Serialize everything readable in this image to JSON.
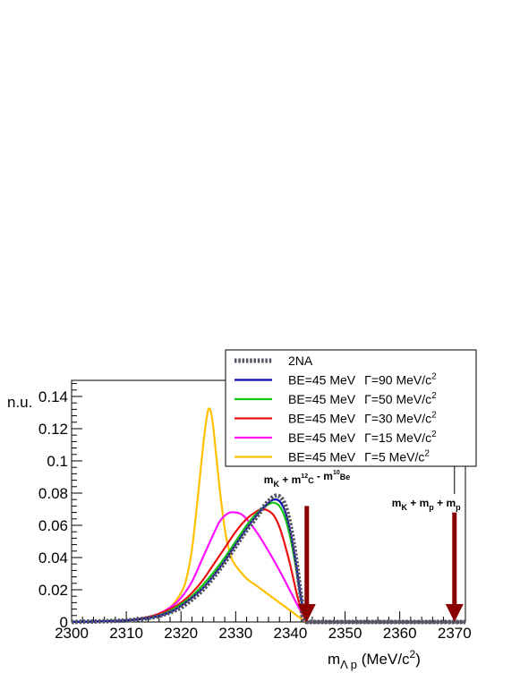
{
  "chart_data": {
    "type": "line",
    "title": "",
    "xlabel": "m_{Λ p} (MeV/c^{2})",
    "ylabel": "n.u.",
    "xlim": [
      2300,
      2372
    ],
    "ylim": [
      0,
      0.15
    ],
    "x_ticks": [
      2300,
      2310,
      2320,
      2330,
      2340,
      2350,
      2360,
      2370
    ],
    "y_ticks": [
      0,
      0.02,
      0.04,
      0.06,
      0.08,
      0.1,
      0.12,
      0.14
    ],
    "y_tick_labels": [
      "0",
      "0.02",
      "0.04",
      "0.06",
      "0.08",
      "0.1",
      "0.12",
      "0.14"
    ],
    "series": [
      {
        "name": "2NA",
        "color": "#555566",
        "style": "dotted",
        "x": [
          2300,
          2310,
          2315,
          2318,
          2320,
          2322,
          2324,
          2326,
          2328,
          2330,
          2332,
          2334,
          2335,
          2336,
          2337,
          2338,
          2339,
          2340,
          2341,
          2342,
          2343,
          2350,
          2360,
          2372
        ],
        "y": [
          0,
          0.001,
          0.003,
          0.006,
          0.009,
          0.014,
          0.02,
          0.028,
          0.037,
          0.047,
          0.057,
          0.066,
          0.071,
          0.075,
          0.078,
          0.078,
          0.073,
          0.06,
          0.04,
          0.015,
          0,
          0,
          0,
          0
        ]
      },
      {
        "name": "BE=45 MeV  Γ=90 MeV/c²",
        "color": "#0a0ab4",
        "style": "solid",
        "x": [
          2300,
          2310,
          2315,
          2318,
          2320,
          2322,
          2324,
          2326,
          2328,
          2330,
          2332,
          2334,
          2336,
          2337,
          2338,
          2339,
          2340,
          2341,
          2342,
          2343
        ],
        "y": [
          0,
          0.001,
          0.003,
          0.006,
          0.01,
          0.015,
          0.021,
          0.029,
          0.038,
          0.048,
          0.058,
          0.067,
          0.074,
          0.076,
          0.075,
          0.069,
          0.056,
          0.037,
          0.014,
          0
        ]
      },
      {
        "name": "BE=45 MeV  Γ=50 MeV/c²",
        "color": "#11c811",
        "style": "solid",
        "x": [
          2300,
          2310,
          2315,
          2318,
          2320,
          2322,
          2324,
          2326,
          2328,
          2330,
          2332,
          2334,
          2336,
          2337,
          2338,
          2339,
          2340,
          2341,
          2342,
          2343
        ],
        "y": [
          0,
          0.001,
          0.003,
          0.007,
          0.011,
          0.016,
          0.023,
          0.031,
          0.04,
          0.05,
          0.06,
          0.068,
          0.073,
          0.074,
          0.072,
          0.065,
          0.052,
          0.034,
          0.013,
          0
        ]
      },
      {
        "name": "BE=45 MeV  Γ=30 MeV/c²",
        "color": "#ee1111",
        "style": "solid",
        "x": [
          2300,
          2310,
          2315,
          2318,
          2320,
          2322,
          2324,
          2326,
          2328,
          2330,
          2332,
          2334,
          2335,
          2336,
          2337,
          2338,
          2339,
          2340,
          2341,
          2342,
          2343
        ],
        "y": [
          0,
          0.001,
          0.004,
          0.008,
          0.012,
          0.018,
          0.026,
          0.036,
          0.046,
          0.056,
          0.064,
          0.069,
          0.07,
          0.069,
          0.066,
          0.059,
          0.048,
          0.035,
          0.02,
          0.007,
          0
        ]
      },
      {
        "name": "BE=45 MeV  Γ=15 MeV/c²",
        "color": "#ff11ff",
        "style": "solid",
        "x": [
          2300,
          2310,
          2315,
          2318,
          2320,
          2322,
          2324,
          2326,
          2327,
          2328,
          2329,
          2330,
          2331,
          2332,
          2334,
          2336,
          2338,
          2340,
          2342,
          2343
        ],
        "y": [
          0,
          0.001,
          0.004,
          0.009,
          0.015,
          0.025,
          0.04,
          0.055,
          0.062,
          0.066,
          0.068,
          0.068,
          0.067,
          0.064,
          0.055,
          0.044,
          0.032,
          0.019,
          0.006,
          0
        ]
      },
      {
        "name": "BE=45 MeV  Γ=5 MeV/c²",
        "color": "#ffc000",
        "style": "solid",
        "x": [
          2300,
          2310,
          2315,
          2318,
          2320,
          2321,
          2322,
          2323,
          2324,
          2324.5,
          2325,
          2325.5,
          2326,
          2327,
          2328,
          2329,
          2330,
          2332,
          2334,
          2336,
          2338,
          2340,
          2342,
          2343
        ],
        "y": [
          0,
          0.001,
          0.004,
          0.009,
          0.018,
          0.027,
          0.045,
          0.075,
          0.108,
          0.122,
          0.132,
          0.13,
          0.118,
          0.085,
          0.058,
          0.042,
          0.035,
          0.027,
          0.022,
          0.017,
          0.012,
          0.007,
          0.002,
          0
        ]
      }
    ],
    "legend_placement": "top-right",
    "annotations": [
      {
        "x": 2343,
        "label_parts": [
          {
            "t": "m",
            "shift": "base"
          },
          {
            "t": "K",
            "shift": "sub"
          },
          {
            "t": " + m",
            "shift": "base"
          },
          {
            "t": "",
            "shift": "sub"
          },
          {
            "t": "12",
            "shift": "subsup"
          },
          {
            "t": "C",
            "shift": "sub"
          },
          {
            "t": " - m",
            "shift": "base"
          },
          {
            "t": "",
            "shift": "sub"
          },
          {
            "t": "10",
            "shift": "subsup"
          },
          {
            "t": "Be",
            "shift": "sub"
          }
        ],
        "arrow_top_y": 0.072,
        "color": "#8b0000"
      },
      {
        "x": 2370,
        "label_parts": [
          {
            "t": "m",
            "shift": "base"
          },
          {
            "t": "K",
            "shift": "sub"
          },
          {
            "t": " + m",
            "shift": "base"
          },
          {
            "t": "p",
            "shift": "sub"
          },
          {
            "t": " + m",
            "shift": "base"
          },
          {
            "t": "p",
            "shift": "sub"
          }
        ],
        "arrow_top_y": 0.068,
        "color": "#8b0000"
      }
    ]
  }
}
